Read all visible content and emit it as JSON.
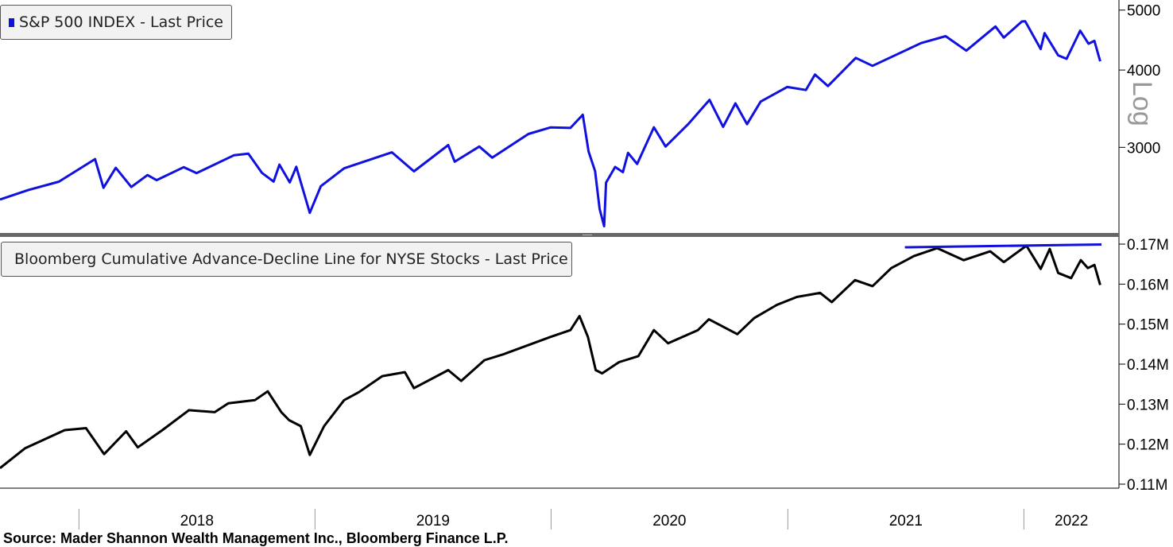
{
  "chart_data": [
    {
      "type": "line",
      "legend_placement": "top-left",
      "series": [
        {
          "name": "S&P 500 INDEX - Last Price",
          "color": "#1010e0",
          "points": [
            [
              "2017-09-01",
              2470
            ],
            [
              "2017-10-15",
              2560
            ],
            [
              "2017-12-01",
              2640
            ],
            [
              "2018-01-26",
              2872
            ],
            [
              "2018-02-08",
              2581
            ],
            [
              "2018-02-27",
              2780
            ],
            [
              "2018-03-23",
              2588
            ],
            [
              "2018-04-17",
              2706
            ],
            [
              "2018-05-01",
              2655
            ],
            [
              "2018-06-12",
              2786
            ],
            [
              "2018-07-02",
              2726
            ],
            [
              "2018-08-29",
              2914
            ],
            [
              "2018-09-20",
              2930
            ],
            [
              "2018-10-11",
              2728
            ],
            [
              "2018-10-29",
              2641
            ],
            [
              "2018-11-07",
              2813
            ],
            [
              "2018-11-23",
              2633
            ],
            [
              "2018-12-03",
              2790
            ],
            [
              "2018-12-24",
              2351
            ],
            [
              "2019-01-10",
              2596
            ],
            [
              "2019-02-15",
              2775
            ],
            [
              "2019-04-30",
              2945
            ],
            [
              "2019-06-03",
              2744
            ],
            [
              "2019-07-26",
              3025
            ],
            [
              "2019-08-05",
              2844
            ],
            [
              "2019-09-12",
              3009
            ],
            [
              "2019-10-02",
              2887
            ],
            [
              "2019-11-27",
              3153
            ],
            [
              "2019-12-31",
              3231
            ],
            [
              "2020-01-31",
              3225
            ],
            [
              "2020-02-19",
              3386
            ],
            [
              "2020-02-28",
              2954
            ],
            [
              "2020-03-09",
              2746
            ],
            [
              "2020-03-16",
              2386
            ],
            [
              "2020-03-23",
              2237
            ],
            [
              "2020-03-26",
              2630
            ],
            [
              "2020-04-09",
              2789
            ],
            [
              "2020-04-21",
              2736
            ],
            [
              "2020-04-29",
              2939
            ],
            [
              "2020-05-13",
              2820
            ],
            [
              "2020-06-08",
              3232
            ],
            [
              "2020-06-26",
              3009
            ],
            [
              "2020-07-31",
              3271
            ],
            [
              "2020-09-02",
              3580
            ],
            [
              "2020-09-23",
              3237
            ],
            [
              "2020-10-12",
              3534
            ],
            [
              "2020-10-30",
              3270
            ],
            [
              "2020-11-20",
              3557
            ],
            [
              "2020-12-31",
              3756
            ],
            [
              "2021-01-29",
              3714
            ],
            [
              "2021-02-12",
              3934
            ],
            [
              "2021-03-04",
              3768
            ],
            [
              "2021-04-16",
              4185
            ],
            [
              "2021-05-12",
              4063
            ],
            [
              "2021-07-26",
              4422
            ],
            [
              "2021-09-02",
              4537
            ],
            [
              "2021-10-04",
              4300
            ],
            [
              "2021-11-18",
              4704
            ],
            [
              "2021-12-01",
              4513
            ],
            [
              "2021-12-29",
              4793
            ],
            [
              "2022-01-03",
              4797
            ],
            [
              "2022-01-27",
              4326
            ],
            [
              "2022-02-02",
              4589
            ],
            [
              "2022-02-23",
              4225
            ],
            [
              "2022-03-08",
              4170
            ],
            [
              "2022-03-29",
              4631
            ],
            [
              "2022-04-11",
              4412
            ],
            [
              "2022-04-20",
              4459
            ],
            [
              "2022-04-29",
              4132
            ]
          ]
        }
      ],
      "y_scale": "log",
      "ylabel": "Log",
      "yticks": [
        3000,
        4000,
        5000
      ],
      "ylim": [
        2175,
        5100
      ]
    },
    {
      "type": "line",
      "legend_placement": "top-left",
      "series": [
        {
          "name": "Bloomberg Cumulative Advance-Decline Line for NYSE Stocks - Last Price",
          "color": "#000000",
          "points": [
            [
              "2017-09-01",
              114000
            ],
            [
              "2017-10-10",
              119000
            ],
            [
              "2017-12-10",
              123500
            ],
            [
              "2018-01-12",
              124000
            ],
            [
              "2018-02-09",
              117500
            ],
            [
              "2018-03-15",
              123200
            ],
            [
              "2018-04-02",
              119200
            ],
            [
              "2018-05-10",
              123500
            ],
            [
              "2018-06-20",
              128500
            ],
            [
              "2018-07-30",
              128000
            ],
            [
              "2018-08-20",
              130200
            ],
            [
              "2018-09-30",
              131000
            ],
            [
              "2018-10-20",
              133200
            ],
            [
              "2018-11-10",
              128000
            ],
            [
              "2018-11-22",
              126000
            ],
            [
              "2018-12-10",
              124500
            ],
            [
              "2018-12-24",
              117300
            ],
            [
              "2019-01-15",
              124500
            ],
            [
              "2019-02-15",
              131000
            ],
            [
              "2019-03-10",
              133000
            ],
            [
              "2019-04-15",
              137000
            ],
            [
              "2019-05-20",
              138000
            ],
            [
              "2019-06-03",
              134000
            ],
            [
              "2019-07-26",
              138500
            ],
            [
              "2019-08-15",
              135800
            ],
            [
              "2019-09-20",
              141000
            ],
            [
              "2019-10-20",
              142500
            ],
            [
              "2019-12-31",
              146800
            ],
            [
              "2020-01-31",
              148500
            ],
            [
              "2020-02-14",
              152000
            ],
            [
              "2020-02-27",
              146800
            ],
            [
              "2020-03-10",
              138500
            ],
            [
              "2020-03-20",
              137700
            ],
            [
              "2020-04-15",
              140500
            ],
            [
              "2020-05-15",
              142000
            ],
            [
              "2020-06-08",
              148500
            ],
            [
              "2020-06-30",
              145200
            ],
            [
              "2020-08-15",
              148500
            ],
            [
              "2020-09-01",
              151200
            ],
            [
              "2020-10-15",
              147500
            ],
            [
              "2020-11-10",
              151500
            ],
            [
              "2020-12-15",
              154800
            ],
            [
              "2021-01-15",
              156800
            ],
            [
              "2021-02-20",
              157800
            ],
            [
              "2021-03-10",
              155500
            ],
            [
              "2021-04-15",
              161000
            ],
            [
              "2021-05-12",
              159500
            ],
            [
              "2021-06-10",
              164000
            ],
            [
              "2021-07-15",
              167000
            ],
            [
              "2021-08-20",
              169000
            ],
            [
              "2021-09-30",
              166000
            ],
            [
              "2021-11-10",
              168200
            ],
            [
              "2021-12-01",
              165500
            ],
            [
              "2022-01-05",
              169600
            ],
            [
              "2022-01-27",
              163800
            ],
            [
              "2022-02-10",
              168800
            ],
            [
              "2022-02-23",
              162800
            ],
            [
              "2022-03-15",
              161500
            ],
            [
              "2022-03-30",
              166000
            ],
            [
              "2022-04-10",
              164000
            ],
            [
              "2022-04-20",
              164800
            ],
            [
              "2022-04-29",
              159800
            ]
          ]
        }
      ],
      "annotations": [
        {
          "type": "trendline",
          "color": "#1010e0",
          "from": [
            "2021-07-01",
            169200
          ],
          "to": [
            "2022-05-01",
            169900
          ]
        }
      ],
      "yticks": [
        110000,
        120000,
        130000,
        140000,
        150000,
        160000,
        170000
      ],
      "ytick_labels": [
        "0.11M",
        "0.12M",
        "0.13M",
        "0.14M",
        "0.15M",
        "0.16M",
        "0.17M"
      ],
      "ylim": [
        109000,
        171000
      ]
    }
  ],
  "x_axis": {
    "xlim": [
      "2017-09-01",
      "2022-05-28"
    ],
    "year_labels": [
      "2018",
      "2019",
      "2020",
      "2021",
      "2022"
    ],
    "year_starts": [
      "2018-01-01",
      "2019-01-01",
      "2020-01-01",
      "2021-01-01",
      "2022-01-01"
    ]
  },
  "source": "Source: Mader Shannon Wealth Management Inc., Bloomberg Finance L.P."
}
